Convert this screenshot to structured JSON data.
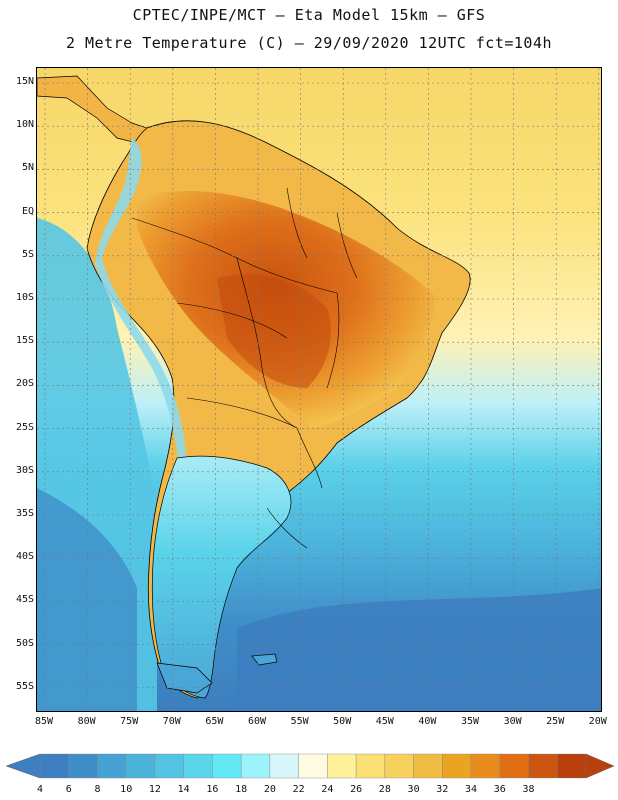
{
  "title": {
    "line1": "CPTEC/INPE/MCT –  Eta Model 15km – GFS",
    "line2": "2 Metre Temperature (C) – 29/09/2020 12UTC fct=104h"
  },
  "axes": {
    "lat_labels": [
      "15N",
      "10N",
      "5N",
      "EQ",
      "5S",
      "10S",
      "15S",
      "20S",
      "25S",
      "30S",
      "35S",
      "40S",
      "45S",
      "50S",
      "55S"
    ],
    "lon_labels": [
      "85W",
      "80W",
      "75W",
      "70W",
      "65W",
      "60W",
      "55W",
      "50W",
      "45W",
      "40W",
      "35W",
      "30W",
      "25W",
      "20W"
    ]
  },
  "colorbar": {
    "labels": [
      "4",
      "6",
      "8",
      "10",
      "12",
      "14",
      "16",
      "18",
      "20",
      "22",
      "24",
      "26",
      "28",
      "30",
      "32",
      "34",
      "36",
      "38"
    ],
    "colors": [
      "#3e7fc2",
      "#3f8ec8",
      "#45a2d2",
      "#4cb4da",
      "#52c3e2",
      "#5ad5ea",
      "#63e8f4",
      "#9ef2fb",
      "#d6f6fb",
      "#fffbe0",
      "#fff19a",
      "#fbe175",
      "#f6d15b",
      "#efbd43",
      "#eaa422",
      "#e98c1e",
      "#e06e15",
      "#cb5511",
      "#b8400d"
    ]
  },
  "map": {
    "colors": {
      "deep_ocean": "#3c7ebf",
      "mid_ocean": "#4aa6d6",
      "cool_ocean": "#55c6e4",
      "mild_ocean": "#a8eef8",
      "warm_ocean": "#f7dc74",
      "hot_ocean": "#f3c659",
      "land_warm": "#efa43a",
      "land_hot": "#d9651c",
      "land_cold": "#5bd5ea",
      "andes": "#9bd8e6"
    }
  }
}
